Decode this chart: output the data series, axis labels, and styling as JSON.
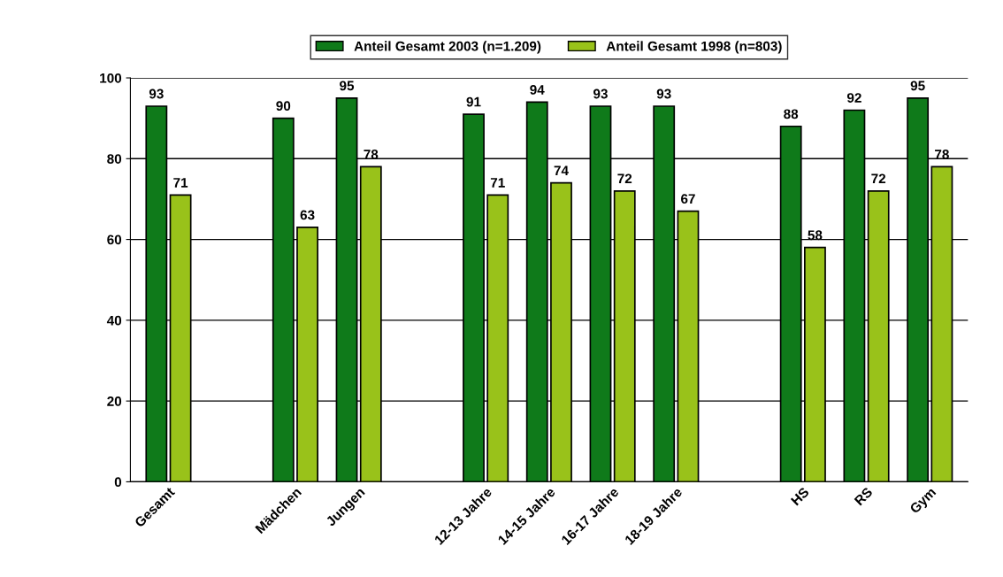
{
  "chart_data": {
    "type": "bar",
    "categories": [
      "Gesamt",
      null,
      "Mädchen",
      "Jungen",
      null,
      "12-13 Jahre",
      "14-15 Jahre",
      "16-17 Jahre",
      "18-19 Jahre",
      null,
      "HS",
      "RS",
      "Gym"
    ],
    "series": [
      {
        "name": "Anteil Gesamt 2003 (n=1.209)",
        "color": "#0f7a1a",
        "values": [
          93,
          null,
          90,
          95,
          null,
          91,
          94,
          93,
          93,
          null,
          88,
          92,
          95
        ]
      },
      {
        "name": "Anteil Gesamt 1998 (n=803)",
        "color": "#99c21a",
        "values": [
          71,
          null,
          63,
          78,
          null,
          71,
          74,
          72,
          67,
          null,
          58,
          72,
          78
        ]
      }
    ],
    "ylim": [
      0,
      100
    ],
    "yticks": [
      0,
      20,
      40,
      60,
      80,
      100
    ],
    "grid": "y",
    "legend": "top",
    "data_labels": true
  }
}
